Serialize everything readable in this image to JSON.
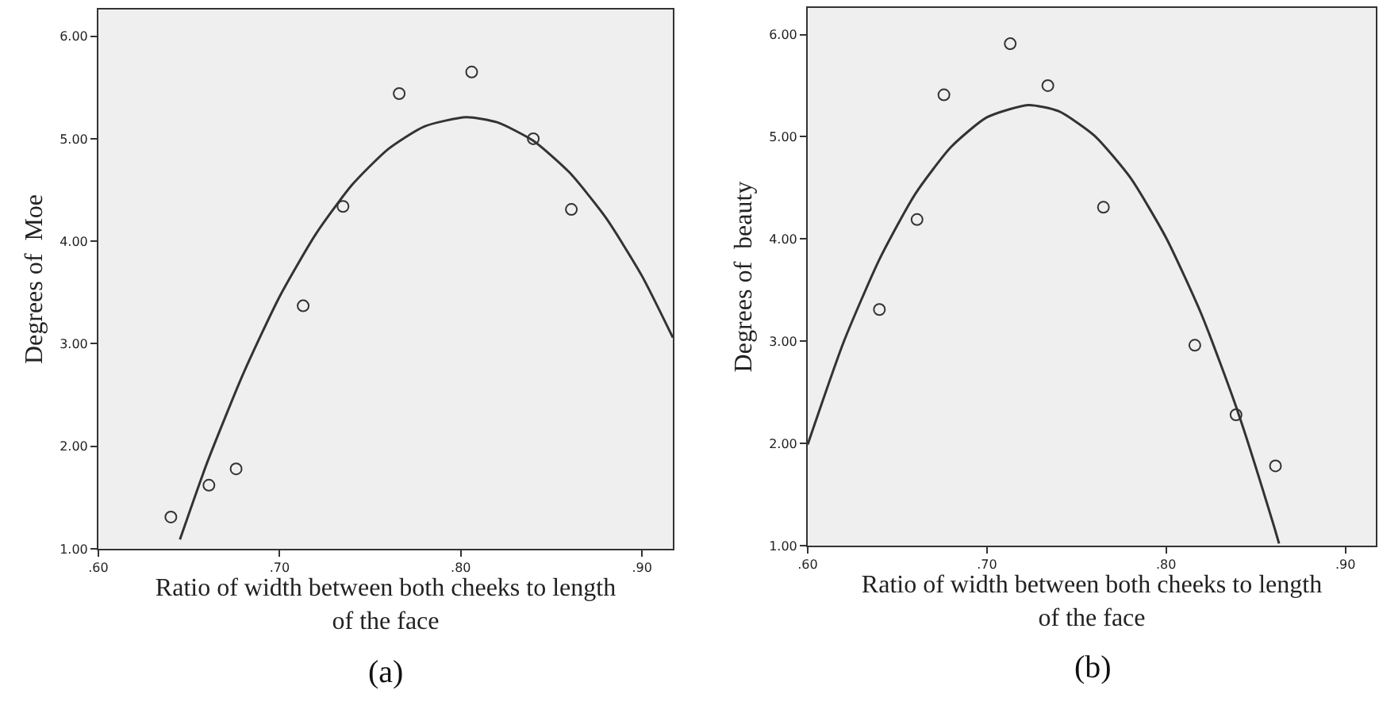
{
  "chart_data": [
    {
      "type": "scatter",
      "xlabel": "Ratio of width between both cheeks to length of the face",
      "ylabel": "Degrees of  Moe",
      "annotations": [
        "(a)"
      ],
      "xlim": [
        0.6,
        0.917
      ],
      "ylim": [
        1,
        6.26
      ],
      "xticks": [
        {
          "value": 0.6,
          "label": ".60"
        },
        {
          "value": 0.7,
          "label": ".70"
        },
        {
          "value": 0.8,
          "label": ".80"
        },
        {
          "value": 0.9,
          "label": ".90"
        }
      ],
      "yticks": [
        {
          "value": 1,
          "label": "1.00"
        },
        {
          "value": 2,
          "label": "2.00"
        },
        {
          "value": 3,
          "label": "3.00"
        },
        {
          "value": 4,
          "label": "4.00"
        },
        {
          "value": 5,
          "label": "5.00"
        },
        {
          "value": 6,
          "label": "6.00"
        }
      ],
      "grid": false,
      "marker": "circle",
      "series": [
        {
          "type": "scatter",
          "color": "#333333",
          "x": [
            0.64,
            0.661,
            0.676,
            0.713,
            0.735,
            0.766,
            0.806,
            0.84,
            0.861
          ],
          "values": [
            1.31,
            1.62,
            1.78,
            3.37,
            4.34,
            5.44,
            5.65,
            5.0,
            4.31
          ]
        },
        {
          "type": "line",
          "color": "#333333",
          "marker": "none",
          "x": [
            0.645,
            0.66,
            0.68,
            0.7,
            0.72,
            0.74,
            0.76,
            0.78,
            0.803,
            0.82,
            0.84,
            0.86,
            0.88,
            0.9,
            0.917
          ],
          "values": [
            1.09,
            1.84,
            2.71,
            3.46,
            4.07,
            4.55,
            4.9,
            5.12,
            5.21,
            5.16,
            4.98,
            4.67,
            4.23,
            3.66,
            3.06
          ]
        }
      ]
    },
    {
      "type": "scatter",
      "xlabel": "Ratio of width between both cheeks to length of the face",
      "ylabel": "Degrees of  beauty",
      "annotations": [
        "(b)"
      ],
      "xlim": [
        0.6,
        0.917
      ],
      "ylim": [
        1,
        6.26
      ],
      "xticks": [
        {
          "value": 0.6,
          "label": ".60"
        },
        {
          "value": 0.7,
          "label": ".70"
        },
        {
          "value": 0.8,
          "label": ".80"
        },
        {
          "value": 0.9,
          "label": ".90"
        }
      ],
      "yticks": [
        {
          "value": 1,
          "label": "1.00"
        },
        {
          "value": 2,
          "label": "2.00"
        },
        {
          "value": 3,
          "label": "3.00"
        },
        {
          "value": 4,
          "label": "4.00"
        },
        {
          "value": 5,
          "label": "5.00"
        },
        {
          "value": 6,
          "label": "6.00"
        }
      ],
      "grid": false,
      "marker": "circle",
      "series": [
        {
          "type": "scatter",
          "color": "#333333",
          "x": [
            0.64,
            0.661,
            0.676,
            0.713,
            0.734,
            0.765,
            0.816,
            0.839,
            0.861
          ],
          "values": [
            3.31,
            4.19,
            5.41,
            5.91,
            5.5,
            4.31,
            2.96,
            2.28,
            1.78
          ]
        },
        {
          "type": "line",
          "color": "#333333",
          "marker": "none",
          "x": [
            0.6,
            0.62,
            0.64,
            0.66,
            0.68,
            0.7,
            0.723,
            0.74,
            0.76,
            0.78,
            0.8,
            0.82,
            0.84,
            0.86,
            0.863
          ],
          "values": [
            1.99,
            2.99,
            3.8,
            4.44,
            4.9,
            5.19,
            5.31,
            5.25,
            5.01,
            4.6,
            4.01,
            3.25,
            2.31,
            1.2,
            1.02
          ]
        }
      ]
    }
  ]
}
